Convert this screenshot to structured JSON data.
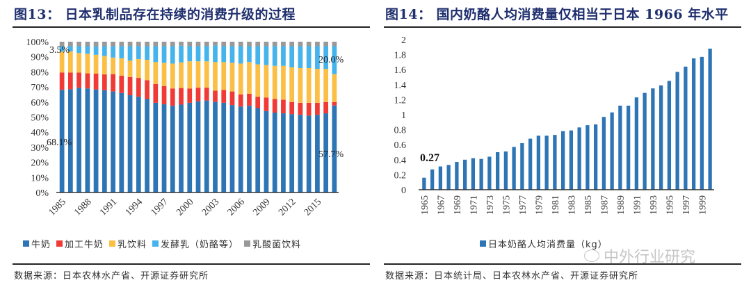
{
  "figure13": {
    "title": "图13：  日本乳制品存在持续的消费升级的过程",
    "source": "数据来源：日本农林水产省、开源证券研究所",
    "chart_data": {
      "type": "bar",
      "stacked": true,
      "title": "图13：日本乳制品存在持续的消费升级的过程",
      "xlabel": "",
      "ylabel": "",
      "ylim": [
        0,
        100
      ],
      "yticks": [
        "0%",
        "10%",
        "20%",
        "30%",
        "40%",
        "50%",
        "60%",
        "70%",
        "80%",
        "90%",
        "100%"
      ],
      "categories": [
        "1985",
        "1986",
        "1987",
        "1988",
        "1989",
        "1990",
        "1991",
        "1992",
        "1993",
        "1994",
        "1995",
        "1996",
        "1997",
        "1998",
        "1999",
        "2000",
        "2001",
        "2002",
        "2003",
        "2004",
        "2005",
        "2006",
        "2007",
        "2008",
        "2009",
        "2010",
        "2011",
        "2012",
        "2013",
        "2014",
        "2015",
        "2016",
        "2017"
      ],
      "xtick_labels": [
        "1985",
        "1988",
        "1991",
        "1994",
        "1997",
        "2000",
        "2003",
        "2006",
        "2009",
        "2012",
        "2015"
      ],
      "legend_position": "bottom",
      "series": [
        {
          "name": "牛奶",
          "color": "#2e75b6",
          "values": [
            68.1,
            68.5,
            69.5,
            69,
            68.3,
            67.8,
            67,
            66,
            64.5,
            63.5,
            62,
            59.5,
            58.5,
            57.5,
            58.3,
            59.5,
            60.5,
            61,
            60,
            59.5,
            58,
            57,
            57.5,
            56,
            54,
            53,
            52.5,
            52,
            51.5,
            51,
            51.5,
            52.5,
            57.7
          ]
        },
        {
          "name": "加工牛奶",
          "color": "#f03a35",
          "values": [
            11.5,
            11,
            10,
            10,
            10.5,
            10.5,
            11.5,
            11.5,
            12,
            12.5,
            12.5,
            12.5,
            12,
            11.5,
            11,
            9.5,
            9,
            8.5,
            7.5,
            8.5,
            9,
            8,
            8,
            7.5,
            9,
            9,
            9,
            8,
            8,
            8.5,
            8,
            7.5,
            2.3
          ]
        },
        {
          "name": "乳饮料",
          "color": "#fbbf45",
          "values": [
            13.9,
            14,
            13,
            13,
            12.5,
            12.2,
            11,
            11.5,
            11,
            12.5,
            13.5,
            14.5,
            15.5,
            16.5,
            17,
            18,
            17.5,
            17.5,
            19,
            18.5,
            19,
            20.5,
            21,
            21.5,
            21.5,
            22,
            22.5,
            23,
            23,
            23,
            22.5,
            22,
            18.5
          ]
        },
        {
          "name": "发酵乳（奶酪等）",
          "color": "#45b4ec",
          "values": [
            3.5,
            3.5,
            4.5,
            5,
            5.5,
            6.5,
            7.5,
            8,
            9.5,
            8.5,
            9,
            10.5,
            11,
            11.5,
            11,
            10,
            10,
            10,
            11,
            10.5,
            11,
            11.5,
            10.5,
            12,
            12.5,
            13,
            13,
            14,
            14.5,
            14.5,
            15,
            15,
            18.5
          ]
        },
        {
          "name": "乳酸菌饮料",
          "color": "#999999",
          "values": [
            3,
            3,
            3,
            3,
            3.2,
            3,
            3,
            3,
            3,
            3,
            3,
            3,
            3,
            3,
            2.7,
            3,
            3,
            3,
            2.5,
            3,
            3,
            3,
            3,
            3,
            3,
            3,
            3,
            3,
            3,
            3,
            3,
            3,
            3
          ]
        }
      ],
      "annotations": [
        "3.5%",
        "68.1%",
        "20.0%",
        "57.7%"
      ]
    }
  },
  "figure14": {
    "title": "图14：  国内奶酪人均消费量仅相当于日本 1966 年水平",
    "source": "数据来源：日本统计局、日本农林水产省、开源证券研究所",
    "watermark": "中外行业研究",
    "chart_data": {
      "type": "bar",
      "title": "图14：国内奶酪人均消费量仅相当于日本 1966 年水平",
      "xlabel": "",
      "ylabel": "",
      "ylim": [
        0,
        2
      ],
      "yticks": [
        "0",
        "0.2",
        "0.4",
        "0.6",
        "0.8",
        "1",
        "1.2",
        "1.4",
        "1.6",
        "1.8",
        "2"
      ],
      "categories": [
        "1965",
        "1966",
        "1967",
        "1968",
        "1969",
        "1970",
        "1971",
        "1972",
        "1973",
        "1974",
        "1975",
        "1976",
        "1977",
        "1978",
        "1979",
        "1980",
        "1981",
        "1982",
        "1983",
        "1984",
        "1985",
        "1986",
        "1987",
        "1988",
        "1989",
        "1990",
        "1991",
        "1992",
        "1993",
        "1994",
        "1995",
        "1996",
        "1997",
        "1998",
        "1999",
        "2000"
      ],
      "xtick_labels": [
        "1965",
        "1967",
        "1969",
        "1971",
        "1973",
        "1975",
        "1977",
        "1979",
        "1981",
        "1983",
        "1985",
        "1987",
        "1989",
        "1991",
        "1993",
        "1995",
        "1997",
        "1999"
      ],
      "legend_position": "bottom",
      "series": [
        {
          "name": "日本奶酪人均消费量（kg）",
          "color": "#2e75b6",
          "values": [
            0.16,
            0.27,
            0.31,
            0.33,
            0.37,
            0.4,
            0.42,
            0.41,
            0.44,
            0.5,
            0.51,
            0.57,
            0.62,
            0.68,
            0.72,
            0.72,
            0.73,
            0.78,
            0.79,
            0.83,
            0.86,
            0.87,
            0.97,
            1.03,
            1.12,
            1.12,
            1.23,
            1.29,
            1.35,
            1.39,
            1.45,
            1.57,
            1.64,
            1.75,
            1.77,
            1.88
          ]
        }
      ],
      "annotations": [
        "0.27"
      ]
    }
  }
}
